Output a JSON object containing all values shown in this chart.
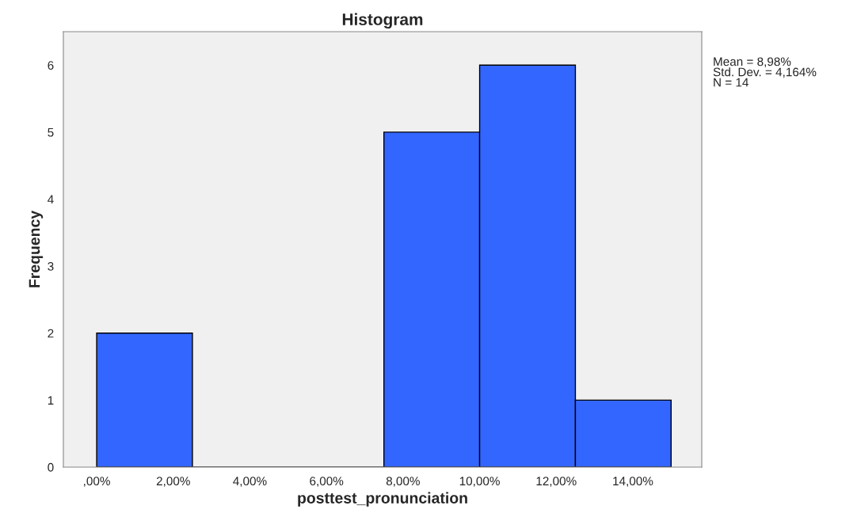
{
  "chart_data": {
    "type": "histogram",
    "title": "Histogram",
    "xlabel": "posttest_pronunciation",
    "ylabel": "Frequency",
    "bins": [
      0,
      2.5,
      5,
      7.5,
      10,
      12.5,
      15
    ],
    "values": [
      2,
      0,
      0,
      5,
      6,
      1
    ],
    "color": "#3366ff",
    "xlim": [
      -0.87,
      15.8
    ],
    "xticks": [
      {
        "value": 0,
        "label": ",00%"
      },
      {
        "value": 2,
        "label": "2,00%"
      },
      {
        "value": 4,
        "label": "4,00%"
      },
      {
        "value": 6,
        "label": "6,00%"
      },
      {
        "value": 8,
        "label": "8,00%"
      },
      {
        "value": 10,
        "label": "10,00%"
      },
      {
        "value": 12,
        "label": "12,00%"
      },
      {
        "value": 14,
        "label": "14,00%"
      }
    ],
    "ylim": [
      0,
      6.5
    ],
    "yticks": [
      0,
      1,
      2,
      3,
      4,
      5,
      6
    ],
    "grid": false,
    "annotations": [
      "Mean = 8,98%\nStd. Dev. = 4,164%\nN = 14"
    ]
  }
}
